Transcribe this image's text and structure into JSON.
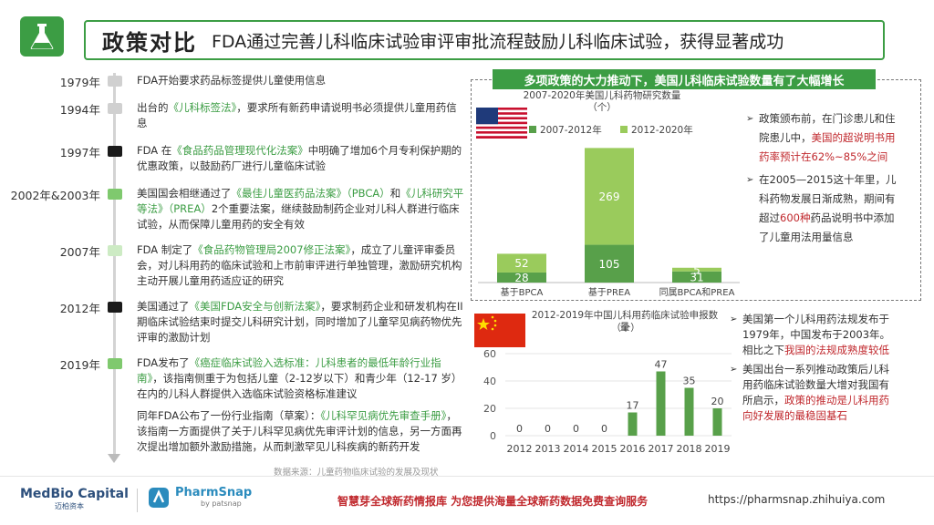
{
  "header": {
    "title": "政策对比",
    "subtitle": "FDA通过完善儿科临床试验审评审批流程鼓励儿科临床试验，获得显著成功"
  },
  "timeline": [
    {
      "year": "1979年",
      "mark": "#d0d0d0",
      "text": "FDA开始要求药品标签提供儿童使用信息"
    },
    {
      "year": "1994年",
      "mark": "#d0d0d0",
      "pre": "出台的",
      "hl": "《儿科标签法》",
      "post": "，要求所有新药申请说明书必须提供儿童用药信息"
    },
    {
      "year": "1997年",
      "mark": "#1a1a1a",
      "pre": "FDA 在",
      "hl": "《食品药品管理现代化法案》",
      "post": "中明确了增加6个月专利保护期的优惠政策，以鼓励药厂进行儿童临床试验"
    },
    {
      "year": "2002年&2003年",
      "mark": "#7fc96e",
      "pre": "美国国会相继通过了",
      "hl": "《最佳儿童医药品法案》（PBCA）",
      "mid": "和",
      "hl2": "《儿科研究平等法》（PREA）",
      "post": "2个重要法案，继续鼓励制药企业对儿科人群进行临床试验，从而保障儿童用药的安全有效"
    },
    {
      "year": "2007年",
      "mark": "#cdebc4",
      "pre": "FDA 制定了",
      "hl": "《食品药物管理局2007修正法案》",
      "post": "，成立了儿童评审委员会，对儿科用药的临床试验和上市前审评进行单独管理，激励研究机构主动开展儿童用药适应证的研究"
    },
    {
      "year": "2012年",
      "mark": "#1a1a1a",
      "pre": "美国通过了",
      "hl": "《美国FDA安全与创新法案》",
      "post": "，要求制药企业和研发机构在II期临床试验结束时提交儿科研究计划，同时增加了儿童罕见病药物优先评审的激励计划"
    },
    {
      "year": "2019年",
      "mark": "#7fc96e",
      "pre": "FDA发布了",
      "hl": "《癌症临床试验入选标准：儿科患者的最低年龄行业指南》",
      "post": "，该指南侧重于为包括儿童（2-12岁以下）和青少年（12-17 岁）在内的儿科人群提供入选临床试验资格标准建议"
    },
    {
      "year": "",
      "mark": "",
      "pre": "同年FDA公布了一份行业指南（草案）：",
      "hl": "《儿科罕见病优先审查手册》",
      "post": "，该指南一方面提供了关于儿科罕见病优先审评计划的信息，另一方面再次提出增加额外激励措施，从而刺激罕见儿科疾病的新药开发"
    }
  ],
  "source": "数据来源：儿童药物临床试验的发展及现状",
  "right": {
    "banner": "多项政策的大力推动下，美国儿科临床试验数量有了大幅增长",
    "us_chart_title": "2007-2020年美国儿科药物研究数量",
    "us_chart_unit": "（个）",
    "cn_chart_title": "2012-2019年中国儿科用药临床试验申报数量",
    "cn_chart_unit": "（个）",
    "bullets_us": [
      {
        "pre": "政策颁布前，在门诊患儿和住院患儿中，",
        "red": "美国的超说明书用药率预计在62%~85%之间",
        "post": ""
      },
      {
        "pre": "在2005—2015这十年里，儿科药物发展日渐成熟，期间有超过",
        "red": "600种",
        "post": "药品说明书中添加了儿童用法用量信息"
      }
    ],
    "bullets_cn": [
      {
        "pre": "美国第一个儿科用药法规发布于1979年，中国发布于2003年。相比之下",
        "red": "我国的法规成熟度较低",
        "post": ""
      },
      {
        "pre": "美国出台一系列推动政策后儿科用药临床试验数量大增对我国有所启示，",
        "red": "政策的推动是儿科用药向好发展的最稳固基石",
        "post": ""
      }
    ]
  },
  "chart_data": [
    {
      "type": "bar",
      "title": "2007-2020年美国儿科药物研究数量",
      "ylabel": "（个）",
      "stacked": true,
      "categories": [
        "基于BPCA",
        "基于PREA",
        "同属BPCA和PREA"
      ],
      "series": [
        {
          "name": "2007-2012年",
          "color": "#58a04a",
          "values": [
            28,
            105,
            31
          ]
        },
        {
          "name": "2012-2020年",
          "color": "#9acb5c",
          "values": [
            52,
            269,
            5
          ]
        }
      ],
      "ylim": [
        0,
        400
      ]
    },
    {
      "type": "bar",
      "title": "2012-2019年中国儿科用药临床试验申报数量",
      "ylabel": "（个）",
      "categories": [
        "2012",
        "2013",
        "2014",
        "2015",
        "2016",
        "2017",
        "2018",
        "2019"
      ],
      "values": [
        0,
        0,
        0,
        0,
        17,
        47,
        35,
        20
      ],
      "yticks": [
        0,
        20,
        40,
        60
      ],
      "ylim": [
        0,
        60
      ],
      "color": "#58a04a"
    }
  ],
  "footer": {
    "brand1": "MedBio Capital",
    "brand1_sub": "迈柏资本",
    "brand2": "PharmSnap",
    "brand2_sub": "by patsnap",
    "slogan": "智慧芽全球新药情报库 为您提供海量全球新药数据免费查询服务",
    "url": "https://pharmsnap.zhihuiya.com"
  }
}
